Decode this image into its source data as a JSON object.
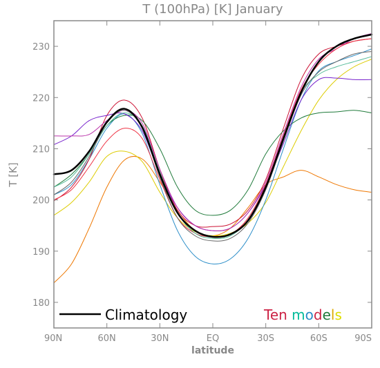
{
  "chart_data": {
    "type": "line",
    "title": "T (100hPa) [K] January",
    "xlabel": "latitude",
    "ylabel": "T [K]",
    "xlim": [
      90,
      -90
    ],
    "ylim": [
      175,
      235
    ],
    "x_tick_labels": [
      "90N",
      "60N",
      "30N",
      "EQ",
      "30S",
      "60S",
      "90S"
    ],
    "x_tick_values": [
      90,
      60,
      30,
      0,
      -30,
      -60,
      -90
    ],
    "y_ticks": [
      180,
      190,
      200,
      210,
      220,
      230
    ],
    "grid": false,
    "legend": {
      "placement": "bottom",
      "climatology_label": "Climatology",
      "models_words": [
        "Ten",
        "models"
      ],
      "models_word_colors": [
        "#cc2244",
        "#00bb99",
        "#cc2244",
        "#dddd00"
      ]
    },
    "x": [
      90,
      80,
      70,
      60,
      50,
      40,
      30,
      20,
      10,
      0,
      -10,
      -20,
      -30,
      -40,
      -50,
      -60,
      -70,
      -80,
      -90
    ],
    "series": [
      {
        "color": "#000000",
        "width": 2.5,
        "values": [
          205,
          205.8,
          209.5,
          215.2,
          217.8,
          214.2,
          205,
          197.5,
          194,
          192.8,
          193.3,
          196,
          202.5,
          212,
          221,
          227,
          230,
          231.5,
          232.3
        ]
      },
      {
        "color": "#ee7700",
        "width": 1,
        "values": [
          183.8,
          187.5,
          194.5,
          202.5,
          207.8,
          208,
          203.5,
          198,
          194,
          193,
          194.5,
          198.5,
          203,
          204.5,
          205.8,
          204.5,
          203,
          202,
          201.5
        ]
      },
      {
        "color": "#ddcc00",
        "width": 1,
        "values": [
          197,
          199.5,
          203.5,
          208.5,
          209.5,
          207.5,
          201.5,
          196.5,
          193.8,
          193,
          193.5,
          195.5,
          199.5,
          206.5,
          213.5,
          219.5,
          223.5,
          226,
          227.5
        ]
      },
      {
        "color": "#2a8dc8",
        "width": 1,
        "values": [
          201,
          203,
          208,
          214,
          216.8,
          213,
          203,
          194,
          189,
          187.5,
          188.5,
          192.5,
          200,
          210,
          219.5,
          225.2,
          227,
          228.2,
          229.5
        ]
      },
      {
        "color": "#cc1133",
        "width": 1,
        "values": [
          199.8,
          202.5,
          208,
          216.5,
          219.5,
          216,
          206,
          198,
          195,
          194.8,
          195.3,
          198,
          204,
          214,
          223.5,
          228.5,
          230,
          231,
          231.5
        ]
      },
      {
        "color": "#1f7a3a",
        "width": 1,
        "values": [
          202.5,
          205,
          209,
          214.5,
          216.5,
          215.5,
          210,
          202.5,
          198,
          197,
          198,
          202,
          209,
          213.5,
          216,
          217,
          217.2,
          217.5,
          217
        ]
      },
      {
        "color": "#7722cc",
        "width": 1,
        "values": [
          210.8,
          212.5,
          215.5,
          216.5,
          216.8,
          213.5,
          205,
          198.5,
          195,
          194,
          194.5,
          197.5,
          203,
          211,
          219.5,
          223.5,
          223.8,
          223.5,
          223.5
        ]
      },
      {
        "color": "#bb33aa",
        "width": 1,
        "values": [
          212.5,
          212.5,
          212.8,
          215.5,
          217.5,
          215,
          206,
          198.5,
          195,
          194,
          194.5,
          197.5,
          203.5,
          213,
          222,
          227.5,
          229.5,
          231.5,
          232.5
        ]
      },
      {
        "color": "#ee3344",
        "width": 1,
        "values": [
          200,
          202,
          206.5,
          211.5,
          214,
          212,
          204,
          196.5,
          193.5,
          192.8,
          193.3,
          196.5,
          203,
          212.5,
          221.5,
          226.5,
          229.5,
          231,
          231.5
        ]
      },
      {
        "color": "#55bb99",
        "width": 1,
        "values": [
          202.5,
          204.5,
          209,
          214.5,
          217,
          214.5,
          205.5,
          197.5,
          193.5,
          192.5,
          193,
          196,
          202.5,
          212,
          221,
          224.5,
          226,
          227,
          228
        ]
      },
      {
        "color": "#666666",
        "width": 1,
        "values": [
          201,
          203.5,
          208.5,
          215,
          217.5,
          214,
          204.5,
          196.5,
          193,
          192,
          192.5,
          195.5,
          202,
          211.5,
          220.5,
          225,
          227,
          228.5,
          229
        ]
      }
    ]
  }
}
